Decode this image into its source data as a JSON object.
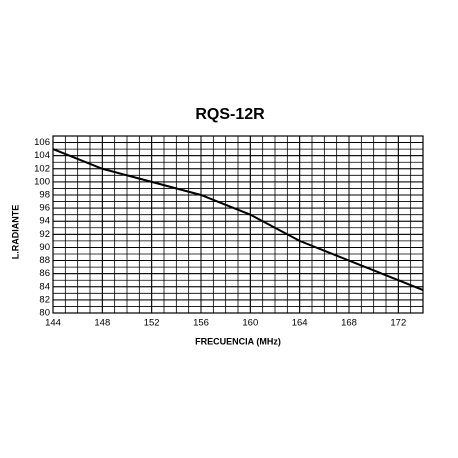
{
  "chart_data": {
    "type": "line",
    "title": "RQS-12R",
    "x_label": "FRECUENCIA (MHz)",
    "y_label": "L.RADIANTE",
    "x": [
      144,
      148,
      152,
      156,
      160,
      164,
      168,
      172,
      174
    ],
    "series": [
      {
        "color": "#000000",
        "values": [
          105,
          102,
          100,
          98,
          95,
          91,
          88,
          85,
          83.5
        ]
      }
    ],
    "xlim": [
      144,
      174
    ],
    "xticks": [
      144,
      148,
      152,
      156,
      160,
      164,
      168,
      172
    ],
    "ylim": [
      80,
      107
    ],
    "yticks": [
      80,
      82,
      84,
      86,
      88,
      90,
      92,
      94,
      96,
      98,
      100,
      102,
      104,
      106
    ],
    "grid": true
  }
}
